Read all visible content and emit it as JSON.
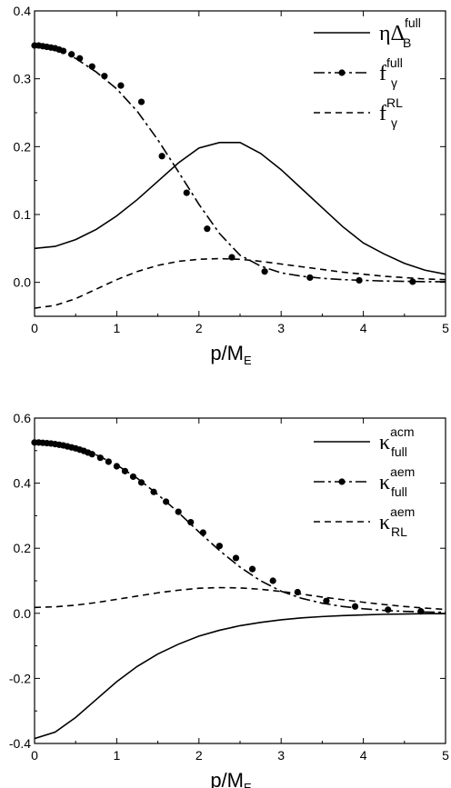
{
  "chart_data": [
    {
      "type": "line",
      "xlabel": "p/M",
      "xlabel_sub": "E",
      "xlim": [
        0,
        5
      ],
      "ylim": [
        -0.05,
        0.4
      ],
      "xticks": [
        "0",
        "1",
        "2",
        "3",
        "4",
        "5"
      ],
      "yticks": [
        "0.0",
        "0.1",
        "0.2",
        "0.3",
        "0.4"
      ],
      "legend_position": "top-right",
      "series": [
        {
          "name": "ηΔ_B^full",
          "legend": {
            "main": "ηΔ",
            "sup": "full",
            "sub": "B"
          },
          "style": "solid",
          "x": [
            0,
            0.25,
            0.5,
            0.75,
            1,
            1.25,
            1.5,
            1.75,
            2,
            2.25,
            2.5,
            2.75,
            3,
            3.25,
            3.5,
            3.75,
            4,
            4.25,
            4.5,
            4.75,
            5
          ],
          "y": [
            0.05,
            0.053,
            0.063,
            0.078,
            0.098,
            0.122,
            0.149,
            0.176,
            0.198,
            0.206,
            0.206,
            0.19,
            0.166,
            0.138,
            0.11,
            0.082,
            0.058,
            0.042,
            0.028,
            0.018,
            0.012
          ]
        },
        {
          "name": "f_γ^full",
          "legend": {
            "main": "f",
            "sup": "full",
            "sub": "γ"
          },
          "style": "dash-dot-markers",
          "x": [
            0,
            0.25,
            0.5,
            0.75,
            1,
            1.25,
            1.5,
            1.75,
            2,
            2.25,
            2.5,
            2.75,
            3,
            3.25,
            3.5,
            3.75,
            4,
            4.25,
            4.5,
            4.75,
            5
          ],
          "y": [
            0.35,
            0.345,
            0.33,
            0.31,
            0.285,
            0.252,
            0.21,
            0.163,
            0.115,
            0.072,
            0.04,
            0.024,
            0.014,
            0.009,
            0.006,
            0.004,
            0.003,
            0.002,
            0.0015,
            0.001,
            0.001
          ],
          "marker_x": [
            0,
            0.05,
            0.1,
            0.15,
            0.2,
            0.25,
            0.3,
            0.35,
            0.45,
            0.55,
            0.7,
            0.85,
            1.05,
            1.3,
            1.55,
            1.85,
            2.1,
            2.4,
            2.8,
            3.35,
            3.95,
            4.6
          ],
          "marker_y": [
            0.349,
            0.349,
            0.348,
            0.347,
            0.346,
            0.345,
            0.343,
            0.341,
            0.336,
            0.33,
            0.318,
            0.304,
            0.29,
            0.266,
            0.186,
            0.132,
            0.079,
            0.037,
            0.016,
            0.007,
            0.003,
            0.001
          ]
        },
        {
          "name": "f_γ^RL",
          "legend": {
            "main": "f",
            "sup": "RL",
            "sub": "γ"
          },
          "style": "dashed",
          "x": [
            0,
            0.25,
            0.5,
            0.75,
            1,
            1.25,
            1.5,
            1.75,
            2,
            2.25,
            2.5,
            2.75,
            3,
            3.25,
            3.5,
            3.75,
            4,
            4.25,
            4.5,
            4.75,
            5
          ],
          "y": [
            -0.038,
            -0.034,
            -0.024,
            -0.01,
            0.004,
            0.016,
            0.025,
            0.031,
            0.034,
            0.035,
            0.034,
            0.031,
            0.027,
            0.023,
            0.019,
            0.015,
            0.012,
            0.009,
            0.007,
            0.005,
            0.004
          ]
        }
      ]
    },
    {
      "type": "line",
      "xlabel": "p/M",
      "xlabel_sub": "E",
      "xlim": [
        0,
        5
      ],
      "ylim": [
        -0.4,
        0.6
      ],
      "xticks": [
        "0",
        "1",
        "2",
        "3",
        "4",
        "5"
      ],
      "yticks": [
        "-0.4",
        "-0.2",
        "0.0",
        "0.2",
        "0.4",
        "0.6"
      ],
      "legend_position": "top-right",
      "series": [
        {
          "name": "κ_full^acm",
          "legend": {
            "main": "κ",
            "sup": "acm",
            "sub": "full"
          },
          "style": "solid",
          "x": [
            0,
            0.25,
            0.5,
            0.75,
            1,
            1.25,
            1.5,
            1.75,
            2,
            2.25,
            2.5,
            2.75,
            3,
            3.25,
            3.5,
            3.75,
            4,
            4.25,
            4.5,
            4.75,
            5
          ],
          "y": [
            -0.385,
            -0.365,
            -0.32,
            -0.265,
            -0.21,
            -0.163,
            -0.125,
            -0.095,
            -0.07,
            -0.052,
            -0.038,
            -0.028,
            -0.02,
            -0.014,
            -0.01,
            -0.007,
            -0.005,
            -0.003,
            -0.002,
            -0.001,
            -0.001
          ]
        },
        {
          "name": "κ_full^aem",
          "legend": {
            "main": "κ",
            "sup": "aem",
            "sub": "full"
          },
          "style": "dash-dot-markers",
          "x": [
            0,
            0.25,
            0.5,
            0.75,
            1,
            1.25,
            1.5,
            1.75,
            2,
            2.25,
            2.5,
            2.75,
            3,
            3.25,
            3.5,
            3.75,
            4,
            4.25,
            4.5,
            4.75,
            5
          ],
          "y": [
            0.525,
            0.52,
            0.508,
            0.487,
            0.456,
            0.415,
            0.365,
            0.31,
            0.25,
            0.193,
            0.142,
            0.1,
            0.068,
            0.046,
            0.031,
            0.021,
            0.014,
            0.009,
            0.006,
            0.004,
            0.003
          ],
          "marker_x": [
            0,
            0.05,
            0.1,
            0.15,
            0.2,
            0.25,
            0.3,
            0.35,
            0.4,
            0.45,
            0.5,
            0.55,
            0.6,
            0.65,
            0.7,
            0.8,
            0.9,
            1.0,
            1.1,
            1.2,
            1.3,
            1.45,
            1.6,
            1.75,
            1.9,
            2.05,
            2.25,
            2.45,
            2.65,
            2.9,
            3.2,
            3.55,
            3.9,
            4.3,
            4.7
          ],
          "marker_y": [
            0.525,
            0.525,
            0.524,
            0.523,
            0.522,
            0.52,
            0.518,
            0.516,
            0.513,
            0.51,
            0.507,
            0.503,
            0.499,
            0.494,
            0.489,
            0.478,
            0.466,
            0.452,
            0.437,
            0.42,
            0.402,
            0.373,
            0.343,
            0.312,
            0.28,
            0.248,
            0.207,
            0.17,
            0.136,
            0.1,
            0.065,
            0.038,
            0.021,
            0.011,
            0.006
          ]
        },
        {
          "name": "κ_RL^aem",
          "legend": {
            "main": "κ",
            "sup": "aem",
            "sub": "RL"
          },
          "style": "dashed",
          "x": [
            0,
            0.25,
            0.5,
            0.75,
            1,
            1.25,
            1.5,
            1.75,
            2,
            2.25,
            2.5,
            2.75,
            3,
            3.25,
            3.5,
            3.75,
            4,
            4.25,
            4.5,
            4.75,
            5
          ],
          "y": [
            0.018,
            0.02,
            0.025,
            0.033,
            0.043,
            0.053,
            0.063,
            0.071,
            0.077,
            0.079,
            0.078,
            0.074,
            0.067,
            0.059,
            0.05,
            0.042,
            0.034,
            0.027,
            0.021,
            0.016,
            0.012
          ]
        }
      ]
    }
  ]
}
